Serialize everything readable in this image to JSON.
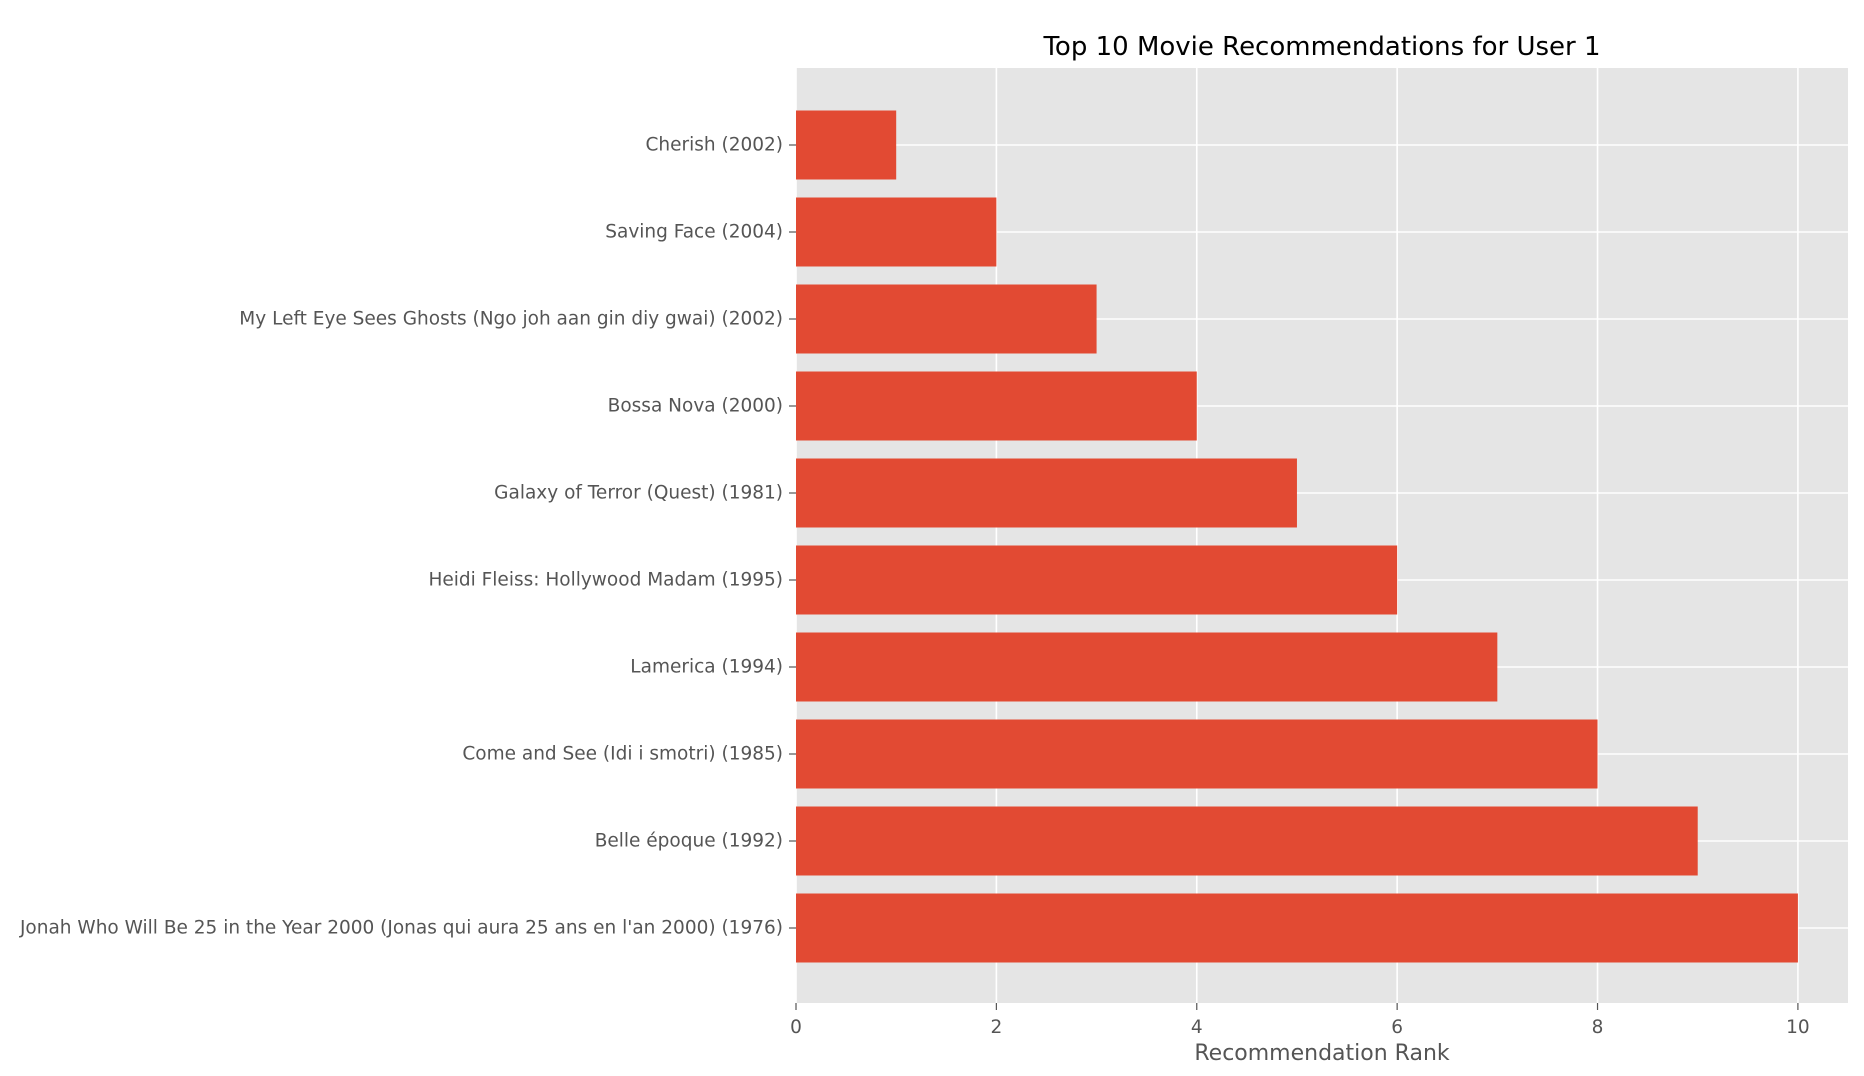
{
  "chart_data": {
    "type": "bar",
    "orientation": "horizontal",
    "title": "Top 10 Movie Recommendations for User 1",
    "xlabel": "Recommendation Rank",
    "ylabel": "",
    "categories": [
      "Cherish (2002)",
      "Saving Face (2004)",
      "My Left Eye Sees Ghosts (Ngo joh aan gin diy gwai) (2002)",
      "Bossa Nova (2000)",
      "Galaxy of Terror (Quest) (1981)",
      "Heidi Fleiss: Hollywood Madam (1995)",
      "Lamerica (1994)",
      "Come and See (Idi i smotri) (1985)",
      "Belle époque (1992)",
      "Jonah Who Will Be 25 in the Year 2000 (Jonas qui aura 25 ans en l'an 2000) (1976)"
    ],
    "values": [
      1,
      2,
      3,
      4,
      5,
      6,
      7,
      8,
      9,
      10
    ],
    "xlim": [
      0,
      10.5
    ],
    "xticks": [
      0,
      2,
      4,
      6,
      8,
      10
    ],
    "xtick_labels": [
      "0",
      "2",
      "4",
      "6",
      "8",
      "10"
    ],
    "grid": true,
    "legend": "none",
    "bar_color": "#E24A33",
    "plot_background": "#E5E5E5",
    "grid_color": "#FFFFFF"
  }
}
